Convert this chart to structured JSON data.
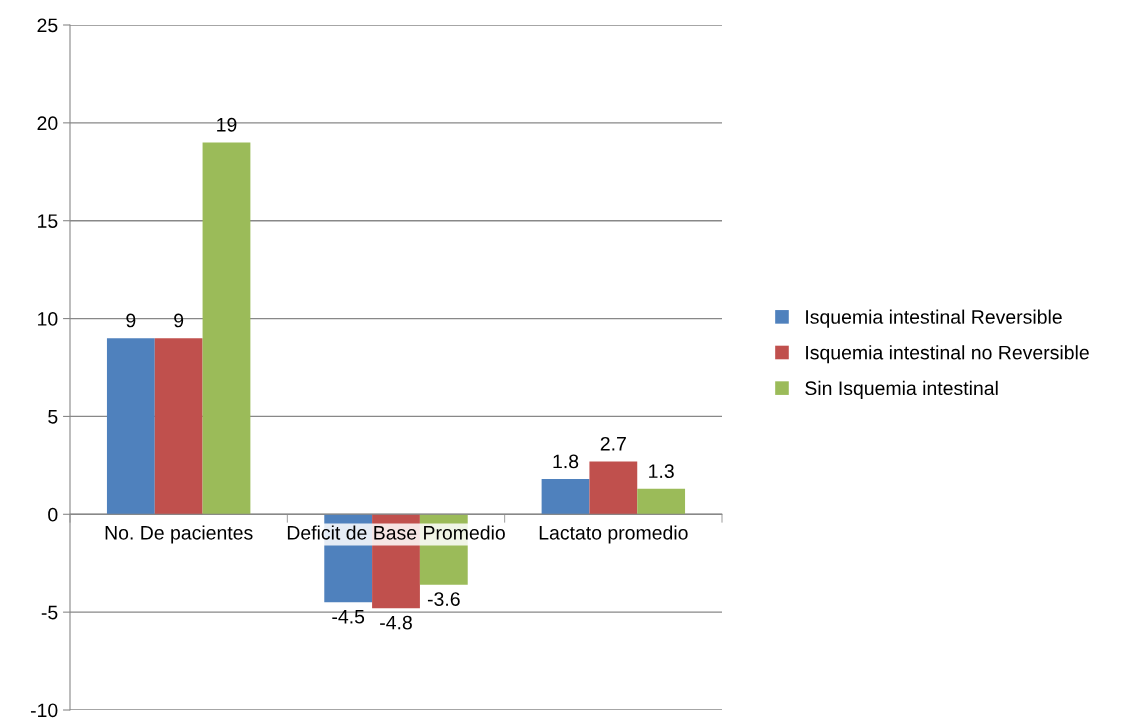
{
  "chart_data": {
    "type": "bar",
    "categories": [
      "No. De pacientes",
      "Deficit de Base Promedio",
      "Lactato promedio"
    ],
    "series": [
      {
        "name": "Isquemia intestinal Reversible",
        "color": "#4f81bd",
        "values": [
          9,
          -4.5,
          1.8
        ]
      },
      {
        "name": "Isquemia intestinal no Reversible",
        "color": "#c0504d",
        "values": [
          9,
          -4.8,
          2.7
        ]
      },
      {
        "name": "Sin Isquemia intestinal",
        "color": "#9bbb59",
        "values": [
          19,
          -3.6,
          1.3
        ]
      }
    ],
    "ylim": [
      -10,
      25
    ],
    "yticks": [
      -10,
      -5,
      0,
      5,
      10,
      15,
      20,
      25
    ],
    "grid": "y",
    "legend": "right",
    "data_labels": true
  }
}
